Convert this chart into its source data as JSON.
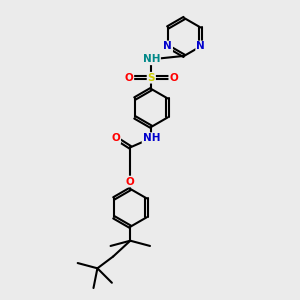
{
  "bg_color": "#ebebeb",
  "atom_colors": {
    "C": "#000000",
    "N": "#0000cc",
    "O": "#ff0000",
    "S": "#cccc00",
    "H": "#008888"
  },
  "bond_color": "#000000",
  "bond_width": 1.5,
  "font_size_atom": 7.5,
  "fig_size": [
    3.0,
    3.0
  ],
  "dpi": 100,
  "xlim": [
    0,
    10
  ],
  "ylim": [
    0,
    10
  ]
}
